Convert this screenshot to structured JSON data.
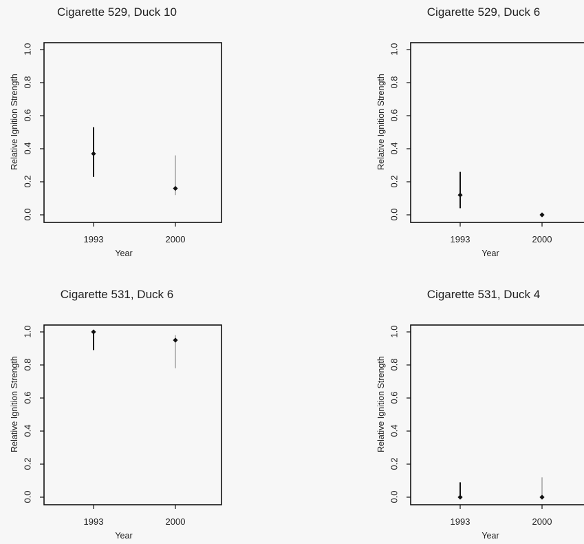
{
  "chart_data": [
    {
      "type": "scatter",
      "title": "Cigarette 529, Duck 10",
      "xlabel": "Year",
      "ylabel": "Relative Ignition Strength",
      "categories": [
        "1993",
        "2000"
      ],
      "yticks": [
        "0.0",
        "0.2",
        "0.4",
        "0.6",
        "0.8",
        "1.0"
      ],
      "ylim": [
        0,
        1
      ],
      "points": [
        {
          "x": "1993",
          "y": 0.37,
          "lower": 0.23,
          "upper": 0.53
        },
        {
          "x": "2000",
          "y": 0.16,
          "lower": 0.12,
          "upper": 0.36
        }
      ]
    },
    {
      "type": "scatter",
      "title": "Cigarette 529, Duck 6",
      "xlabel": "Year",
      "ylabel": "Relative Ignition Strength",
      "categories": [
        "1993",
        "2000"
      ],
      "yticks": [
        "0.0",
        "0.2",
        "0.4",
        "0.6",
        "0.8",
        "1.0"
      ],
      "ylim": [
        0,
        1
      ],
      "points": [
        {
          "x": "1993",
          "y": 0.12,
          "lower": 0.04,
          "upper": 0.26
        },
        {
          "x": "2000",
          "y": 0.0,
          "lower": 0.0,
          "upper": 0.0
        }
      ]
    },
    {
      "type": "scatter",
      "title": "Cigarette 531, Duck 6",
      "xlabel": "Year",
      "ylabel": "Relative Ignition Strength",
      "categories": [
        "1993",
        "2000"
      ],
      "yticks": [
        "0.0",
        "0.2",
        "0.4",
        "0.6",
        "0.8",
        "1.0"
      ],
      "ylim": [
        0,
        1
      ],
      "points": [
        {
          "x": "1993",
          "y": 1.0,
          "lower": 0.89,
          "upper": 1.0
        },
        {
          "x": "2000",
          "y": 0.95,
          "lower": 0.78,
          "upper": 0.98
        }
      ]
    },
    {
      "type": "scatter",
      "title": "Cigarette 531, Duck 4",
      "xlabel": "Year",
      "ylabel": "Relative Ignition Strength",
      "categories": [
        "1993",
        "2000"
      ],
      "yticks": [
        "0.0",
        "0.2",
        "0.4",
        "0.6",
        "0.8",
        "1.0"
      ],
      "ylim": [
        0,
        1
      ],
      "points": [
        {
          "x": "1993",
          "y": 0.0,
          "lower": 0.0,
          "upper": 0.09
        },
        {
          "x": "2000",
          "y": 0.0,
          "lower": 0.0,
          "upper": 0.12
        }
      ]
    }
  ]
}
